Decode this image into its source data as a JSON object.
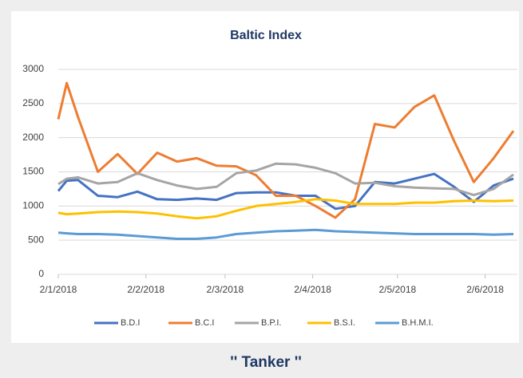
{
  "chart_data": {
    "type": "line",
    "title": "Baltic Index",
    "x": [
      "2/1/2018",
      "5/1/2018",
      "9/1/2018",
      "16/1/2018",
      "23/1/2018",
      "30/1/2018",
      "6/2/2018",
      "13/2/2018",
      "20/2/2018",
      "27/2/2018",
      "6/3/2018",
      "13/3/2018",
      "20/3/2018",
      "27/3/2018",
      "3/4/2018",
      "10/4/2018",
      "17/4/2018",
      "24/4/2018",
      "1/5/2018",
      "8/5/2018",
      "15/5/2018",
      "22/5/2018",
      "29/5/2018",
      "5/6/2018",
      "12/6/2018"
    ],
    "series": [
      {
        "name": "B.D.I",
        "color": "#4472c4",
        "values": [
          1220,
          1370,
          1380,
          1150,
          1130,
          1210,
          1100,
          1090,
          1110,
          1090,
          1190,
          1200,
          1200,
          1150,
          1150,
          960,
          1000,
          1350,
          1330,
          1400,
          1470,
          1280,
          1060,
          1300,
          1400
        ]
      },
      {
        "name": "B.C.I",
        "color": "#ed7d31",
        "values": [
          2270,
          2800,
          2300,
          1500,
          1760,
          1470,
          1780,
          1650,
          1700,
          1590,
          1580,
          1450,
          1150,
          1150,
          1000,
          830,
          1100,
          2200,
          2150,
          2450,
          2620,
          1950,
          1350,
          1700,
          2100
        ]
      },
      {
        "name": "B.P.I.",
        "color": "#a5a5a5",
        "values": [
          1320,
          1400,
          1420,
          1330,
          1350,
          1480,
          1380,
          1300,
          1250,
          1280,
          1480,
          1520,
          1620,
          1610,
          1560,
          1480,
          1330,
          1340,
          1290,
          1270,
          1260,
          1250,
          1160,
          1250,
          1460
        ]
      },
      {
        "name": "B.S.I.",
        "color": "#ffc000",
        "values": [
          900,
          880,
          890,
          910,
          920,
          910,
          890,
          850,
          820,
          850,
          930,
          1000,
          1030,
          1060,
          1100,
          1080,
          1030,
          1030,
          1030,
          1050,
          1050,
          1070,
          1080,
          1070,
          1080
        ]
      },
      {
        "name": "B.H.M.I.",
        "color": "#5b9bd5",
        "values": [
          610,
          600,
          590,
          590,
          580,
          560,
          540,
          520,
          520,
          540,
          590,
          610,
          630,
          640,
          650,
          630,
          620,
          610,
          600,
          590,
          590,
          590,
          590,
          580,
          590
        ]
      }
    ],
    "xlim": [
      "2/1/2018",
      "12/6/2018"
    ],
    "xticks": [
      "2/1/2018",
      "2/2/2018",
      "2/3/2018",
      "2/4/2018",
      "2/5/2018",
      "2/6/2018"
    ],
    "ylim": [
      0,
      3000
    ],
    "yticks": [
      0,
      500,
      1000,
      1500,
      2000,
      2500,
      3000
    ],
    "grid": true,
    "legend": "bottom"
  },
  "caption": "'' Tanker ''"
}
